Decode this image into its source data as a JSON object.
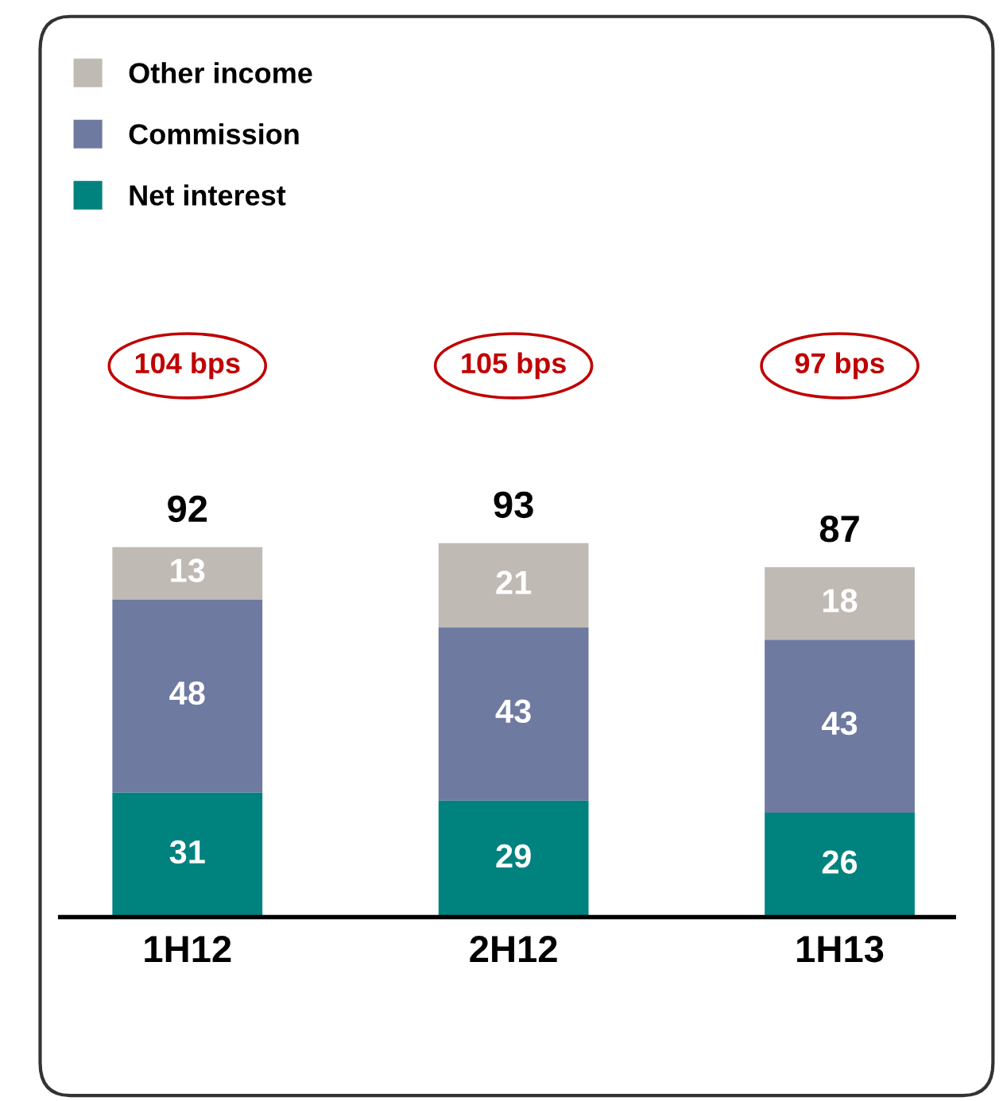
{
  "chart_data": {
    "type": "bar",
    "stacked": true,
    "categories": [
      "1H12",
      "2H12",
      "1H13"
    ],
    "series": [
      {
        "name": "Net interest",
        "color": "#00827f",
        "values": [
          31,
          29,
          26
        ]
      },
      {
        "name": "Commission",
        "color": "#6e7aa0",
        "values": [
          48,
          43,
          43
        ]
      },
      {
        "name": "Other income",
        "color": "#c0bab5",
        "values": [
          13,
          21,
          18
        ]
      }
    ],
    "data_labels": true,
    "totals": [
      "92",
      "93",
      "87"
    ],
    "annotations": [
      "104 bps",
      "105 bps",
      "97 bps"
    ],
    "legend": "top left",
    "tick_labels": "x",
    "grid": false
  }
}
